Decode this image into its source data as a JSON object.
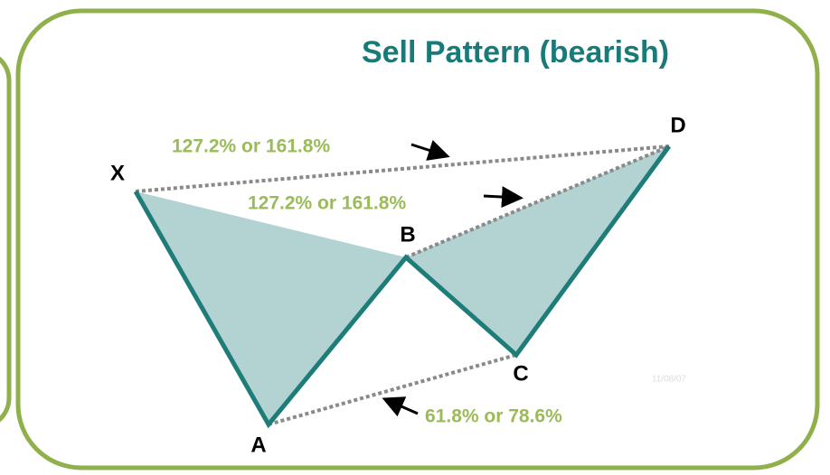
{
  "title": "Sell Pattern (bearish)",
  "points": [
    {
      "label": "X"
    },
    {
      "label": "A"
    },
    {
      "label": "B"
    },
    {
      "label": "C"
    },
    {
      "label": "D"
    }
  ],
  "ratios": [
    {
      "label": "127.2% or 161.8%"
    },
    {
      "label": "127.2% or 161.8%"
    },
    {
      "label": "61.8% or 78.6%"
    }
  ],
  "date": "11/08/07"
}
